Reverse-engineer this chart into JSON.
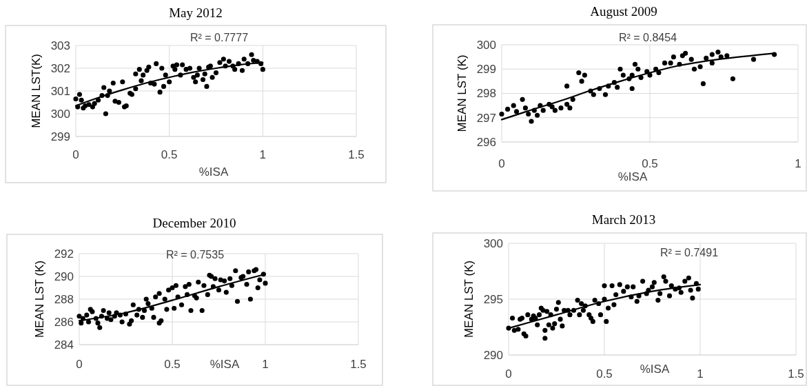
{
  "chart_data": [
    {
      "type": "scatter",
      "title": "May 2012",
      "xlabel": "%ISA",
      "ylabel": "MEAN LST(K)",
      "xlim": [
        0,
        1.5
      ],
      "xticks": [
        0,
        0.5,
        1,
        1.5
      ],
      "ylim": [
        299,
        303
      ],
      "yticks": [
        299,
        300,
        301,
        302,
        303
      ],
      "grid": true,
      "marker": "circle",
      "annotations": [
        "R² = 0.7777"
      ],
      "series": [
        {
          "color": "#000000",
          "x": [
            0,
            0.01,
            0.02,
            0.03,
            0.04,
            0.05,
            0.07,
            0.09,
            0.1,
            0.12,
            0.14,
            0.15,
            0.16,
            0.17,
            0.18,
            0.2,
            0.21,
            0.23,
            0.25,
            0.26,
            0.27,
            0.29,
            0.3,
            0.32,
            0.32,
            0.34,
            0.35,
            0.36,
            0.38,
            0.39,
            0.4,
            0.42,
            0.43,
            0.45,
            0.46,
            0.47,
            0.48,
            0.5,
            0.52,
            0.53,
            0.54,
            0.56,
            0.57,
            0.59,
            0.61,
            0.63,
            0.64,
            0.65,
            0.66,
            0.68,
            0.69,
            0.7,
            0.71,
            0.72,
            0.73,
            0.75,
            0.77,
            0.79,
            0.8,
            0.82,
            0.84,
            0.85,
            0.87,
            0.89,
            0.9,
            0.92,
            0.94,
            0.95,
            0.97,
            0.99,
            1.0
          ],
          "values": [
            300.65,
            300.3,
            300.85,
            300.6,
            300.25,
            300.35,
            300.4,
            300.3,
            300.45,
            300.6,
            300.8,
            301.15,
            300.0,
            300.8,
            301.0,
            301.35,
            300.55,
            300.5,
            301.4,
            300.3,
            300.35,
            300.9,
            300.85,
            301.1,
            301.75,
            301.95,
            301.45,
            301.7,
            301.9,
            302.05,
            301.35,
            301.3,
            302.2,
            300.95,
            302.0,
            301.2,
            301.7,
            301.4,
            302.1,
            301.95,
            302.15,
            301.7,
            302.15,
            301.95,
            302.0,
            301.6,
            301.4,
            301.7,
            302.0,
            301.5,
            301.75,
            301.2,
            302.05,
            302.1,
            301.6,
            301.8,
            302.25,
            302.4,
            302.1,
            302.3,
            302.1,
            301.95,
            302.2,
            301.9,
            302.4,
            302.2,
            302.6,
            302.35,
            302.3,
            302.2,
            301.95
          ]
        },
        {
          "type": "line",
          "marker": "none",
          "color": "#000000",
          "x": [
            0,
            0.125,
            0.25,
            0.375,
            0.5,
            0.625,
            0.75,
            0.875,
            1.0
          ],
          "values": [
            300.35,
            300.72,
            301.05,
            301.35,
            301.6,
            301.82,
            302.0,
            302.15,
            302.25
          ]
        }
      ]
    },
    {
      "type": "scatter",
      "title": "August 2009",
      "xlabel": "%ISA",
      "ylabel": "MEAN LST (K)",
      "xlim": [
        0,
        1
      ],
      "xticks": [
        0,
        0.5,
        1
      ],
      "ylim": [
        296,
        300
      ],
      "yticks": [
        296,
        297,
        298,
        299,
        300
      ],
      "grid": true,
      "marker": "circle",
      "annotations": [
        "R² = 0.8454"
      ],
      "series": [
        {
          "color": "#000000",
          "x": [
            0,
            0.02,
            0.04,
            0.05,
            0.07,
            0.08,
            0.09,
            0.1,
            0.11,
            0.12,
            0.13,
            0.14,
            0.16,
            0.17,
            0.18,
            0.2,
            0.22,
            0.22,
            0.23,
            0.24,
            0.26,
            0.27,
            0.28,
            0.3,
            0.31,
            0.33,
            0.35,
            0.36,
            0.38,
            0.39,
            0.4,
            0.41,
            0.43,
            0.44,
            0.45,
            0.44,
            0.46,
            0.47,
            0.49,
            0.5,
            0.52,
            0.53,
            0.55,
            0.57,
            0.58,
            0.6,
            0.61,
            0.62,
            0.64,
            0.65,
            0.67,
            0.68,
            0.69,
            0.71,
            0.71,
            0.73,
            0.74,
            0.76,
            0.78,
            0.85,
            0.92
          ],
          "values": [
            297.15,
            297.35,
            297.5,
            297.25,
            297.75,
            297.4,
            297.15,
            296.85,
            297.3,
            297.1,
            297.5,
            297.3,
            297.55,
            297.45,
            297.3,
            297.4,
            297.55,
            298.3,
            297.4,
            297.75,
            298.85,
            298.5,
            298.75,
            298.1,
            297.95,
            298.2,
            297.95,
            298.3,
            298.45,
            298.25,
            299.0,
            298.75,
            298.6,
            298.75,
            299.2,
            298.2,
            299.0,
            298.65,
            298.9,
            298.75,
            299.0,
            298.85,
            299.25,
            299.25,
            299.5,
            299.2,
            299.55,
            299.65,
            299.4,
            299.0,
            299.1,
            298.4,
            299.45,
            299.6,
            299.25,
            299.7,
            299.5,
            299.55,
            298.6,
            299.4,
            299.6
          ]
        },
        {
          "type": "line",
          "marker": "none",
          "color": "#000000",
          "x": [
            0,
            0.1,
            0.2,
            0.3,
            0.4,
            0.5,
            0.6,
            0.7,
            0.8,
            0.92
          ],
          "values": [
            296.92,
            297.32,
            297.7,
            298.12,
            298.5,
            298.85,
            299.15,
            299.35,
            299.5,
            299.65
          ]
        }
      ]
    },
    {
      "type": "scatter",
      "title": "December 2010",
      "xlabel": "%ISA",
      "ylabel": "MEAN LST (K)",
      "xlim": [
        0,
        1.5
      ],
      "xticks": [
        0,
        0.5,
        1,
        1.5
      ],
      "ylim": [
        284,
        292
      ],
      "yticks": [
        284,
        286,
        288,
        290,
        292
      ],
      "grid": true,
      "marker": "circle",
      "annotations": [
        "R² = 0.7535"
      ],
      "series": [
        {
          "color": "#000000",
          "x": [
            0,
            0.01,
            0.02,
            0.04,
            0.05,
            0.06,
            0.07,
            0.09,
            0.1,
            0.11,
            0.12,
            0.13,
            0.15,
            0.16,
            0.17,
            0.19,
            0.2,
            0.22,
            0.23,
            0.25,
            0.27,
            0.28,
            0.29,
            0.31,
            0.32,
            0.34,
            0.35,
            0.36,
            0.37,
            0.39,
            0.4,
            0.41,
            0.43,
            0.43,
            0.44,
            0.46,
            0.47,
            0.48,
            0.5,
            0.51,
            0.52,
            0.53,
            0.55,
            0.57,
            0.58,
            0.59,
            0.6,
            0.62,
            0.63,
            0.64,
            0.66,
            0.67,
            0.69,
            0.7,
            0.71,
            0.72,
            0.73,
            0.75,
            0.76,
            0.78,
            0.79,
            0.81,
            0.82,
            0.84,
            0.85,
            0.87,
            0.88,
            0.9,
            0.91,
            0.92,
            0.94,
            0.95,
            0.96,
            0.97,
            0.99,
            1.0
          ],
          "values": [
            286.5,
            285.9,
            286.3,
            286.6,
            286.0,
            287.1,
            286.9,
            286.3,
            285.9,
            285.5,
            286.5,
            287.0,
            286.3,
            286.8,
            286.2,
            286.5,
            286.8,
            286.6,
            286.0,
            286.7,
            285.8,
            286.1,
            287.5,
            286.6,
            287.1,
            286.4,
            287.0,
            288.0,
            287.6,
            287.2,
            286.4,
            288.2,
            288.5,
            285.9,
            286.1,
            288.0,
            287.1,
            288.8,
            289.0,
            287.2,
            289.2,
            288.2,
            287.5,
            289.1,
            288.4,
            289.3,
            287.0,
            288.3,
            288.1,
            289.5,
            287.0,
            289.2,
            288.4,
            290.1,
            290.0,
            289.1,
            289.8,
            288.8,
            289.7,
            289.6,
            288.6,
            289.8,
            289.2,
            290.5,
            287.8,
            289.9,
            290.0,
            289.3,
            290.4,
            288.0,
            290.5,
            290.6,
            289.0,
            289.7,
            290.2,
            289.4
          ]
        },
        {
          "type": "line",
          "marker": "none",
          "color": "#000000",
          "x": [
            0,
            0.25,
            0.5,
            0.75,
            1.0
          ],
          "values": [
            286.1,
            286.8,
            287.9,
            289.1,
            290.2
          ]
        }
      ]
    },
    {
      "type": "scatter",
      "title": "March 2013",
      "xlabel": "%ISA",
      "ylabel": "MEAN LST (K)",
      "xlim": [
        0,
        1.5
      ],
      "xticks": [
        0,
        0.5,
        1,
        1.5
      ],
      "ylim": [
        290,
        300
      ],
      "yticks": [
        290,
        295,
        300
      ],
      "grid": true,
      "marker": "circle",
      "annotations": [
        "R² = 0.7491"
      ],
      "series": [
        {
          "color": "#000000",
          "x": [
            0,
            0.02,
            0.03,
            0.05,
            0.06,
            0.07,
            0.08,
            0.09,
            0.1,
            0.12,
            0.13,
            0.14,
            0.15,
            0.16,
            0.17,
            0.18,
            0.19,
            0.19,
            0.2,
            0.21,
            0.22,
            0.23,
            0.24,
            0.25,
            0.26,
            0.27,
            0.28,
            0.29,
            0.31,
            0.32,
            0.34,
            0.36,
            0.37,
            0.38,
            0.39,
            0.4,
            0.42,
            0.43,
            0.44,
            0.45,
            0.47,
            0.48,
            0.5,
            0.5,
            0.51,
            0.52,
            0.54,
            0.55,
            0.56,
            0.58,
            0.6,
            0.62,
            0.64,
            0.65,
            0.67,
            0.68,
            0.7,
            0.72,
            0.73,
            0.75,
            0.76,
            0.78,
            0.79,
            0.81,
            0.82,
            0.84,
            0.85,
            0.87,
            0.89,
            0.9,
            0.92,
            0.94,
            0.95,
            0.96,
            0.98,
            0.99
          ],
          "values": [
            292.4,
            293.3,
            292.2,
            292.3,
            293.2,
            293.3,
            291.9,
            291.7,
            293.6,
            293.2,
            293.5,
            293.3,
            292.7,
            293.6,
            294.2,
            294.0,
            292.2,
            291.5,
            293.9,
            292.7,
            293.6,
            292.4,
            292.8,
            294.1,
            294.7,
            293.2,
            292.6,
            294.0,
            294.0,
            293.6,
            294.0,
            294.9,
            293.6,
            294.6,
            294.0,
            294.4,
            293.6,
            293.3,
            293.0,
            294.9,
            294.6,
            293.6,
            295.0,
            296.2,
            293.0,
            294.2,
            296.2,
            294.5,
            295.4,
            296.3,
            295.7,
            296.1,
            295.2,
            296.1,
            294.8,
            295.3,
            296.6,
            295.5,
            295.8,
            296.1,
            296.5,
            294.9,
            295.5,
            297.0,
            296.6,
            295.3,
            296.2,
            295.9,
            296.0,
            295.6,
            296.6,
            296.9,
            295.8,
            295.1,
            296.4,
            295.9
          ]
        },
        {
          "type": "line",
          "marker": "none",
          "color": "#000000",
          "x": [
            0,
            0.25,
            0.5,
            0.75,
            1.0
          ],
          "values": [
            292.4,
            293.6,
            294.8,
            295.7,
            296.3
          ]
        }
      ]
    }
  ]
}
